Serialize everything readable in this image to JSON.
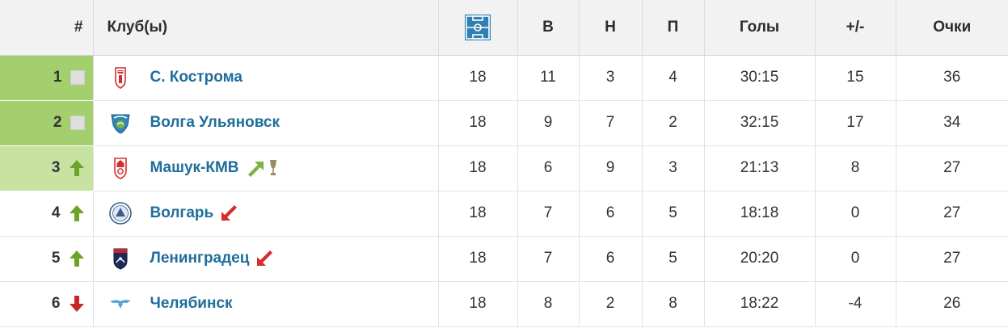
{
  "table": {
    "headers": {
      "position": "#",
      "club": "Клуб(ы)",
      "games_icon": "football-field-icon",
      "wins": "В",
      "draws": "Н",
      "losses": "П",
      "goals": "Голы",
      "difference": "+/-",
      "points": "Очки"
    },
    "colors": {
      "header_bg": "#f2f2f2",
      "zone_promotion": "#a4cf6e",
      "zone_playoff": "#c8e2a2",
      "club_name": "#1f6d9a",
      "trend_up": "#6aa42a",
      "trend_down": "#c62828"
    },
    "rows": [
      {
        "position": "1",
        "trend": "same",
        "club": "С. Кострома",
        "games": "18",
        "wins": "11",
        "draws": "3",
        "losses": "4",
        "goals": "30:15",
        "difference": "15",
        "points": "36"
      },
      {
        "position": "2",
        "trend": "same",
        "club": "Волга Ульяновск",
        "games": "18",
        "wins": "9",
        "draws": "7",
        "losses": "2",
        "goals": "32:15",
        "difference": "17",
        "points": "34"
      },
      {
        "position": "3",
        "trend": "up",
        "club": "Машук-КМВ",
        "games": "18",
        "wins": "6",
        "draws": "9",
        "losses": "3",
        "goals": "21:13",
        "difference": "8",
        "points": "27"
      },
      {
        "position": "4",
        "trend": "up",
        "club": "Волгарь",
        "games": "18",
        "wins": "7",
        "draws": "6",
        "losses": "5",
        "goals": "18:18",
        "difference": "0",
        "points": "27"
      },
      {
        "position": "5",
        "trend": "up",
        "club": "Ленинградец",
        "games": "18",
        "wins": "7",
        "draws": "6",
        "losses": "5",
        "goals": "20:20",
        "difference": "0",
        "points": "27"
      },
      {
        "position": "6",
        "trend": "down",
        "club": "Челябинск",
        "games": "18",
        "wins": "8",
        "draws": "2",
        "losses": "8",
        "goals": "18:22",
        "difference": "-4",
        "points": "26"
      }
    ]
  }
}
